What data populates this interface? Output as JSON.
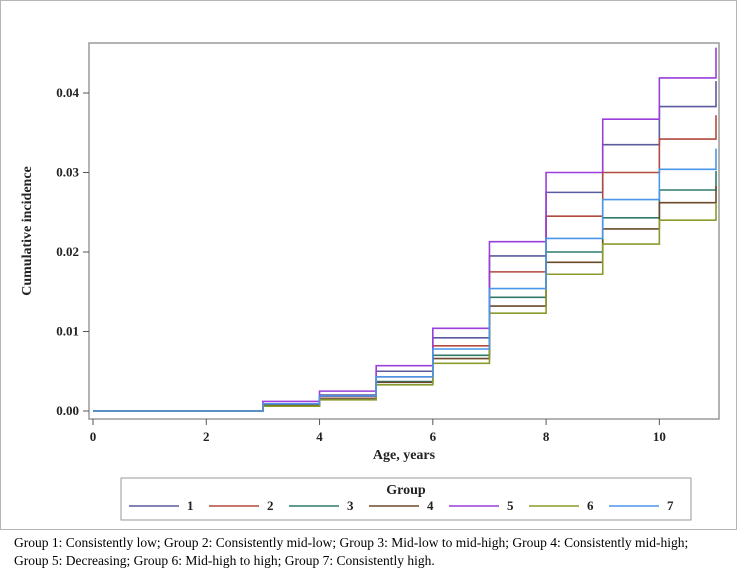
{
  "chart_data": {
    "type": "line",
    "step": true,
    "xlabel": "Age, years",
    "ylabel": "Cumulative incidence",
    "xlim": [
      0,
      11
    ],
    "ylim": [
      0,
      0.046
    ],
    "xticks": [
      0,
      2,
      4,
      6,
      8,
      10
    ],
    "yticks": [
      0.0,
      0.01,
      0.02,
      0.03,
      0.04
    ],
    "ytick_labels": [
      "0.00",
      "0.01",
      "0.02",
      "0.03",
      "0.04"
    ],
    "x": [
      0,
      3,
      4,
      5,
      6,
      7,
      8,
      9,
      10,
      11
    ],
    "legend_title": "Group",
    "legend_position": "bottom",
    "grid": false,
    "series": [
      {
        "name": "1",
        "color": "#5a5a9e",
        "values": [
          0.0,
          0.0009,
          0.002,
          0.005,
          0.0092,
          0.0195,
          0.0275,
          0.0335,
          0.0383,
          0.0415
        ]
      },
      {
        "name": "2",
        "color": "#b04a3c",
        "values": [
          0.0,
          0.0008,
          0.0018,
          0.0043,
          0.0082,
          0.0175,
          0.0245,
          0.03,
          0.0342,
          0.0372
        ]
      },
      {
        "name": "3",
        "color": "#2f7a6a",
        "values": [
          0.0,
          0.0007,
          0.0015,
          0.0037,
          0.007,
          0.0143,
          0.02,
          0.0243,
          0.0278,
          0.0302
        ]
      },
      {
        "name": "4",
        "color": "#6b4a2a",
        "values": [
          0.0,
          0.0007,
          0.0015,
          0.0036,
          0.0066,
          0.0132,
          0.0187,
          0.0229,
          0.0262,
          0.0283
        ]
      },
      {
        "name": "5",
        "color": "#9b3fdb",
        "values": [
          0.0,
          0.0012,
          0.0025,
          0.0057,
          0.0104,
          0.0213,
          0.03,
          0.0367,
          0.0419,
          0.0457
        ]
      },
      {
        "name": "6",
        "color": "#8c9a2c",
        "values": [
          0.0,
          0.0006,
          0.0014,
          0.0033,
          0.006,
          0.0123,
          0.0172,
          0.021,
          0.024,
          0.0262
        ]
      },
      {
        "name": "7",
        "color": "#4a96e8",
        "values": [
          0.0,
          0.0009,
          0.0019,
          0.0043,
          0.0078,
          0.0154,
          0.0217,
          0.0266,
          0.0304,
          0.033
        ]
      }
    ]
  },
  "caption": {
    "line1": "Group 1: Consistently low; Group 2: Consistently mid-low; Group 3: Mid-low to mid-high; Group 4: Consistently mid-high;",
    "line2": "Group 5: Decreasing; Group 6: Mid-high to high; Group 7: Consistently high."
  }
}
